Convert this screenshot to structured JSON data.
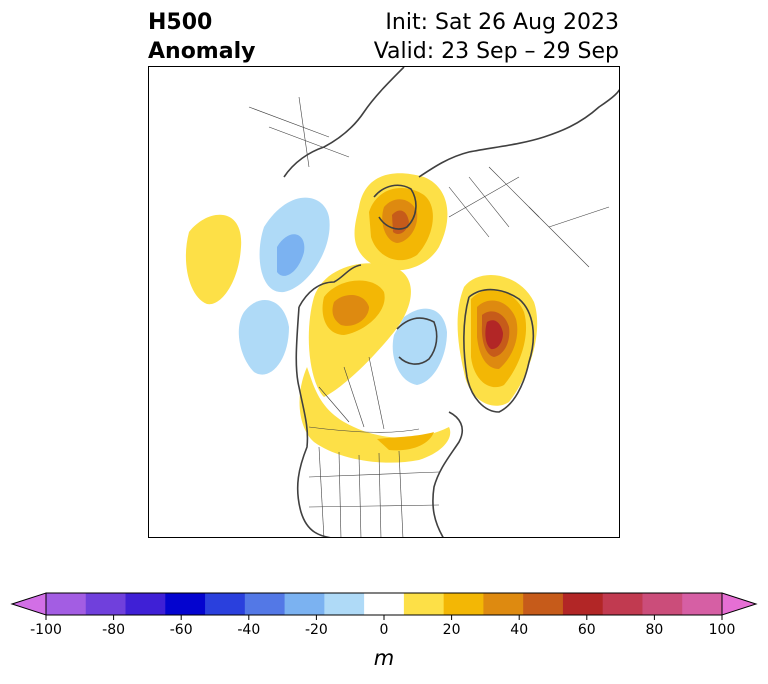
{
  "title": {
    "left_line1": "H500",
    "left_line2": "Anomaly",
    "right_line1": "Init: Sat 26 Aug 2023",
    "right_line2": "Valid: 23 Sep – 29 Sep"
  },
  "colorbar": {
    "unit_label": "m",
    "ticks": [
      "-100",
      "-80",
      "-60",
      "-40",
      "-20",
      "0",
      "20",
      "40",
      "60",
      "80",
      "100"
    ],
    "bins": [
      {
        "range": "-100 to -90",
        "color": "#d26fe6"
      },
      {
        "range": "-90 to -80",
        "color": "#a35de3"
      },
      {
        "range": "-80 to -70",
        "color": "#7040dc"
      },
      {
        "range": "-70 to -60",
        "color": "#3f20d6"
      },
      {
        "range": "-60 to -50",
        "color": "#0404cf"
      },
      {
        "range": "-50 to -40",
        "color": "#2a40dd"
      },
      {
        "range": "-40 to -30",
        "color": "#5378e6"
      },
      {
        "range": "-30 to -20",
        "color": "#7bb2f1"
      },
      {
        "range": "-20 to -10",
        "color": "#afdaf7"
      },
      {
        "range": "-10 to 10",
        "color": "#ffffff"
      },
      {
        "range": "10 to 20",
        "color": "#fde047"
      },
      {
        "range": "20 to 30",
        "color": "#f3b705"
      },
      {
        "range": "30 to 40",
        "color": "#de8a10"
      },
      {
        "range": "40 to 50",
        "color": "#c65b1a"
      },
      {
        "range": "50 to 60",
        "color": "#b22626"
      },
      {
        "range": "60 to 70",
        "color": "#c13a50"
      },
      {
        "range": "70 to 80",
        "color": "#cb4d7a"
      },
      {
        "range": "80 to 90",
        "color": "#d65fa4"
      },
      {
        "range": "90 to 100",
        "color": "#e66fd4"
      }
    ],
    "extend_low_color": "#d26fe6",
    "extend_high_color": "#e66fd4"
  },
  "map": {
    "projection": "north polar stereographic",
    "variable": "500 hPa geopotential height anomaly",
    "anomalies": [
      {
        "name": "positive anomaly over Greenland",
        "sign": "positive",
        "peak_range": "40 to 50"
      },
      {
        "name": "positive anomaly over Scandinavia / Europe",
        "sign": "positive",
        "peak_range": "50 to 60"
      },
      {
        "name": "positive anomaly over Beaufort Sea / Alaska",
        "sign": "positive",
        "peak_range": "30 to 40"
      },
      {
        "name": "positive anomaly over southern Canada / northern US",
        "sign": "positive",
        "peak_range": "10 to 20"
      },
      {
        "name": "positive anomaly over western Pacific",
        "sign": "positive",
        "peak_range": "10 to 20"
      },
      {
        "name": "negative anomaly over Siberia / Bering region",
        "sign": "negative",
        "peak_range": "-30 to -20"
      },
      {
        "name": "negative anomaly over Gulf of Alaska",
        "sign": "negative",
        "peak_range": "-20 to -10"
      },
      {
        "name": "negative anomaly over Hudson Bay / Labrador",
        "sign": "negative",
        "peak_range": "-20 to -10"
      }
    ]
  }
}
